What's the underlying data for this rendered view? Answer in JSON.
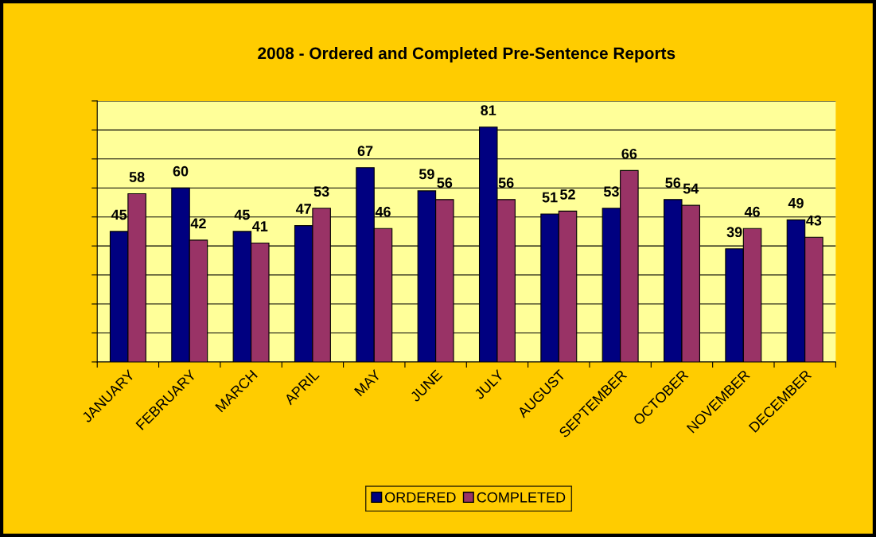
{
  "chart_data": {
    "type": "bar",
    "title": "2008 - Ordered and Completed Pre-Sentence Reports",
    "categories": [
      "JANUARY",
      "FEBRUARY",
      "MARCH",
      "APRIL",
      "MAY",
      "JUNE",
      "JULY",
      "AUGUST",
      "SEPTEMBER",
      "OCTOBER",
      "NOVEMBER",
      "DECEMBER"
    ],
    "series": [
      {
        "name": "ORDERED",
        "color": "#000080",
        "values": [
          45,
          60,
          45,
          47,
          67,
          59,
          81,
          51,
          53,
          56,
          39,
          49
        ]
      },
      {
        "name": "COMPLETED",
        "color": "#993366",
        "values": [
          58,
          42,
          41,
          53,
          46,
          56,
          56,
          52,
          66,
          54,
          46,
          43
        ]
      }
    ],
    "ylim": [
      0,
      90
    ],
    "yticks": [
      {
        "value": 0,
        "label": null
      },
      {
        "value": 10,
        "label": null
      },
      {
        "value": 20,
        "label": null
      },
      {
        "value": 30,
        "label": null
      },
      {
        "value": 40,
        "label": null
      },
      {
        "value": 50,
        "label": null
      },
      {
        "value": 60,
        "label": null
      },
      {
        "value": 70,
        "label": null
      },
      {
        "value": 80,
        "label": null
      },
      {
        "value": 90,
        "label": null
      }
    ],
    "tick_labels": "x",
    "grid": "y",
    "legend": "bottom",
    "data_labels": true
  }
}
